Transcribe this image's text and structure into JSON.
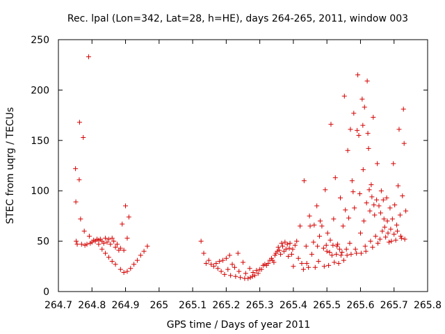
{
  "chart_data": {
    "type": "scatter",
    "title": "Rec. lpal (Lon=342, Lat=28, h=HE), days 264-265, 2011, window 003",
    "xlabel": "GPS time / Days of year 2011",
    "ylabel": "STEC from uqrg / TECUs",
    "xlim": [
      264.7,
      265.8
    ],
    "ylim": [
      0,
      250
    ],
    "xticks": [
      264.7,
      264.8,
      264.9,
      265,
      265.1,
      265.2,
      265.3,
      265.4,
      265.5,
      265.6,
      265.7,
      265.8
    ],
    "xtick_labels": [
      "264.7",
      "264.8",
      "264.9",
      "265",
      "265.1",
      "265.2",
      "265.3",
      "265.4",
      "265.5",
      "265.6",
      "265.7",
      "265.8"
    ],
    "yticks": [
      0,
      50,
      100,
      150,
      200,
      250
    ],
    "ytick_labels": [
      "0",
      "50",
      "100",
      "150",
      "200",
      "250"
    ],
    "marker": "+",
    "color": "#d40000",
    "series": [
      {
        "name": "STEC",
        "points": [
          [
            264.751,
            122
          ],
          [
            264.752,
            89
          ],
          [
            264.753,
            50
          ],
          [
            264.756,
            47
          ],
          [
            264.762,
            111
          ],
          [
            264.763,
            168
          ],
          [
            264.766,
            72
          ],
          [
            264.769,
            47
          ],
          [
            264.774,
            153
          ],
          [
            264.777,
            60
          ],
          [
            264.779,
            46
          ],
          [
            264.785,
            47
          ],
          [
            264.79,
            233
          ],
          [
            264.792,
            55
          ],
          [
            264.795,
            48
          ],
          [
            264.8,
            49
          ],
          [
            264.805,
            51
          ],
          [
            264.81,
            50
          ],
          [
            264.815,
            52
          ],
          [
            264.82,
            51
          ],
          [
            264.825,
            52
          ],
          [
            264.83,
            50
          ],
          [
            264.835,
            48
          ],
          [
            264.84,
            53
          ],
          [
            264.845,
            49
          ],
          [
            264.85,
            52
          ],
          [
            264.855,
            47
          ],
          [
            264.86,
            53
          ],
          [
            264.865,
            50
          ],
          [
            264.87,
            44
          ],
          [
            264.875,
            47
          ],
          [
            264.88,
            41
          ],
          [
            264.885,
            43
          ],
          [
            264.89,
            67
          ],
          [
            264.895,
            41
          ],
          [
            264.9,
            85
          ],
          [
            264.905,
            53
          ],
          [
            264.91,
            74
          ],
          [
            264.82,
            47
          ],
          [
            264.83,
            42
          ],
          [
            264.84,
            38
          ],
          [
            264.85,
            34
          ],
          [
            264.86,
            30
          ],
          [
            264.87,
            27
          ],
          [
            264.885,
            22
          ],
          [
            264.895,
            19
          ],
          [
            264.905,
            20
          ],
          [
            264.915,
            23
          ],
          [
            264.925,
            27
          ],
          [
            264.935,
            31
          ],
          [
            264.945,
            36
          ],
          [
            264.955,
            40
          ],
          [
            264.965,
            45
          ],
          [
            265.125,
            50
          ],
          [
            265.133,
            38
          ],
          [
            265.14,
            28
          ],
          [
            265.148,
            31
          ],
          [
            265.155,
            27
          ],
          [
            265.163,
            25
          ],
          [
            265.17,
            28
          ],
          [
            265.175,
            23
          ],
          [
            265.18,
            30
          ],
          [
            265.185,
            20
          ],
          [
            265.19,
            31
          ],
          [
            265.195,
            17
          ],
          [
            265.2,
            33
          ],
          [
            265.205,
            22
          ],
          [
            265.21,
            36
          ],
          [
            265.213,
            16
          ],
          [
            265.218,
            27
          ],
          [
            265.225,
            24
          ],
          [
            265.228,
            15
          ],
          [
            265.235,
            38
          ],
          [
            265.238,
            20
          ],
          [
            265.242,
            14
          ],
          [
            265.25,
            29
          ],
          [
            265.255,
            13
          ],
          [
            265.258,
            18
          ],
          [
            265.265,
            13
          ],
          [
            265.27,
            23
          ],
          [
            265.272,
            14
          ],
          [
            265.278,
            15
          ],
          [
            265.28,
            19
          ],
          [
            265.285,
            16
          ],
          [
            265.29,
            21
          ],
          [
            265.295,
            18
          ],
          [
            265.3,
            22
          ],
          [
            265.305,
            22
          ],
          [
            265.31,
            26
          ],
          [
            265.315,
            27
          ],
          [
            265.32,
            26
          ],
          [
            265.325,
            28
          ],
          [
            265.33,
            31
          ],
          [
            265.335,
            33
          ],
          [
            265.338,
            31
          ],
          [
            265.342,
            29
          ],
          [
            265.345,
            36
          ],
          [
            265.348,
            38
          ],
          [
            265.352,
            40
          ],
          [
            265.355,
            44
          ],
          [
            265.358,
            41
          ],
          [
            265.362,
            37
          ],
          [
            265.365,
            48
          ],
          [
            265.368,
            45
          ],
          [
            265.372,
            40
          ],
          [
            265.375,
            49
          ],
          [
            265.378,
            42
          ],
          [
            265.382,
            47
          ],
          [
            265.385,
            35
          ],
          [
            265.388,
            43
          ],
          [
            265.39,
            48
          ],
          [
            265.395,
            37
          ],
          [
            265.398,
            42
          ],
          [
            265.4,
            25
          ],
          [
            265.405,
            46
          ],
          [
            265.41,
            50
          ],
          [
            265.415,
            33
          ],
          [
            265.42,
            65
          ],
          [
            265.425,
            28
          ],
          [
            265.43,
            22
          ],
          [
            265.432,
            110
          ],
          [
            265.438,
            45
          ],
          [
            265.44,
            28
          ],
          [
            265.445,
            24
          ],
          [
            265.448,
            75
          ],
          [
            265.45,
            65
          ],
          [
            265.455,
            37
          ],
          [
            265.46,
            49
          ],
          [
            265.462,
            66
          ],
          [
            265.465,
            24
          ],
          [
            265.47,
            85
          ],
          [
            265.472,
            45
          ],
          [
            265.475,
            30
          ],
          [
            265.478,
            55
          ],
          [
            265.48,
            70
          ],
          [
            265.485,
            65
          ],
          [
            265.49,
            43
          ],
          [
            265.492,
            25
          ],
          [
            265.495,
            101
          ],
          [
            265.498,
            46
          ],
          [
            265.5,
            40
          ],
          [
            265.502,
            58
          ],
          [
            265.505,
            26
          ],
          [
            265.508,
            39
          ],
          [
            265.51,
            51
          ],
          [
            265.512,
            166
          ],
          [
            265.515,
            36
          ],
          [
            265.518,
            46
          ],
          [
            265.52,
            72
          ],
          [
            265.522,
            29
          ],
          [
            265.525,
            113
          ],
          [
            265.528,
            37
          ],
          [
            265.53,
            45
          ],
          [
            265.532,
            47
          ],
          [
            265.535,
            28
          ],
          [
            265.538,
            42
          ],
          [
            265.54,
            93
          ],
          [
            265.542,
            36
          ],
          [
            265.545,
            39
          ],
          [
            265.548,
            65
          ],
          [
            265.55,
            31
          ],
          [
            265.552,
            194
          ],
          [
            265.555,
            81
          ],
          [
            265.558,
            42
          ],
          [
            265.56,
            36
          ],
          [
            265.562,
            140
          ],
          [
            265.565,
            73
          ],
          [
            265.568,
            48
          ],
          [
            265.57,
            161
          ],
          [
            265.572,
            37
          ],
          [
            265.575,
            110
          ],
          [
            265.578,
            99
          ],
          [
            265.58,
            177
          ],
          [
            265.582,
            83
          ],
          [
            265.585,
            42
          ],
          [
            265.588,
            38
          ],
          [
            265.59,
            160
          ],
          [
            265.592,
            215
          ],
          [
            265.595,
            155
          ],
          [
            265.598,
            97
          ],
          [
            265.6,
            58
          ],
          [
            265.602,
            38
          ],
          [
            265.605,
            191
          ],
          [
            265.607,
            165
          ],
          [
            265.608,
            121
          ],
          [
            265.61,
            70
          ],
          [
            265.612,
            183
          ],
          [
            265.614,
            45
          ],
          [
            265.616,
            40
          ],
          [
            265.618,
            88
          ],
          [
            265.62,
            209
          ],
          [
            265.622,
            157
          ],
          [
            265.624,
            142
          ],
          [
            265.626,
            101
          ],
          [
            265.628,
            80
          ],
          [
            265.63,
            50
          ],
          [
            265.632,
            106
          ],
          [
            265.634,
            94
          ],
          [
            265.636,
            44
          ],
          [
            265.638,
            173
          ],
          [
            265.64,
            86
          ],
          [
            265.642,
            76
          ],
          [
            265.645,
            55
          ],
          [
            265.648,
            91
          ],
          [
            265.65,
            127
          ],
          [
            265.652,
            48
          ],
          [
            265.655,
            85
          ],
          [
            265.658,
            52
          ],
          [
            265.66,
            78
          ],
          [
            265.662,
            100
          ],
          [
            265.665,
            60
          ],
          [
            265.668,
            91
          ],
          [
            265.67,
            72
          ],
          [
            265.672,
            64
          ],
          [
            265.675,
            54
          ],
          [
            265.678,
            93
          ],
          [
            265.68,
            70
          ],
          [
            265.682,
            58
          ],
          [
            265.685,
            49
          ],
          [
            265.688,
            83
          ],
          [
            265.69,
            62
          ],
          [
            265.692,
            50
          ],
          [
            265.695,
            72
          ],
          [
            265.698,
            127
          ],
          [
            265.7,
            57
          ],
          [
            265.702,
            86
          ],
          [
            265.705,
            51
          ],
          [
            265.708,
            66
          ],
          [
            265.71,
            60
          ],
          [
            265.712,
            105
          ],
          [
            265.715,
            161
          ],
          [
            265.718,
            76
          ],
          [
            265.72,
            55
          ],
          [
            265.722,
            53
          ],
          [
            265.725,
            95
          ],
          [
            265.728,
            181
          ],
          [
            265.73,
            147
          ],
          [
            265.732,
            52
          ],
          [
            265.735,
            80
          ]
        ]
      }
    ]
  }
}
